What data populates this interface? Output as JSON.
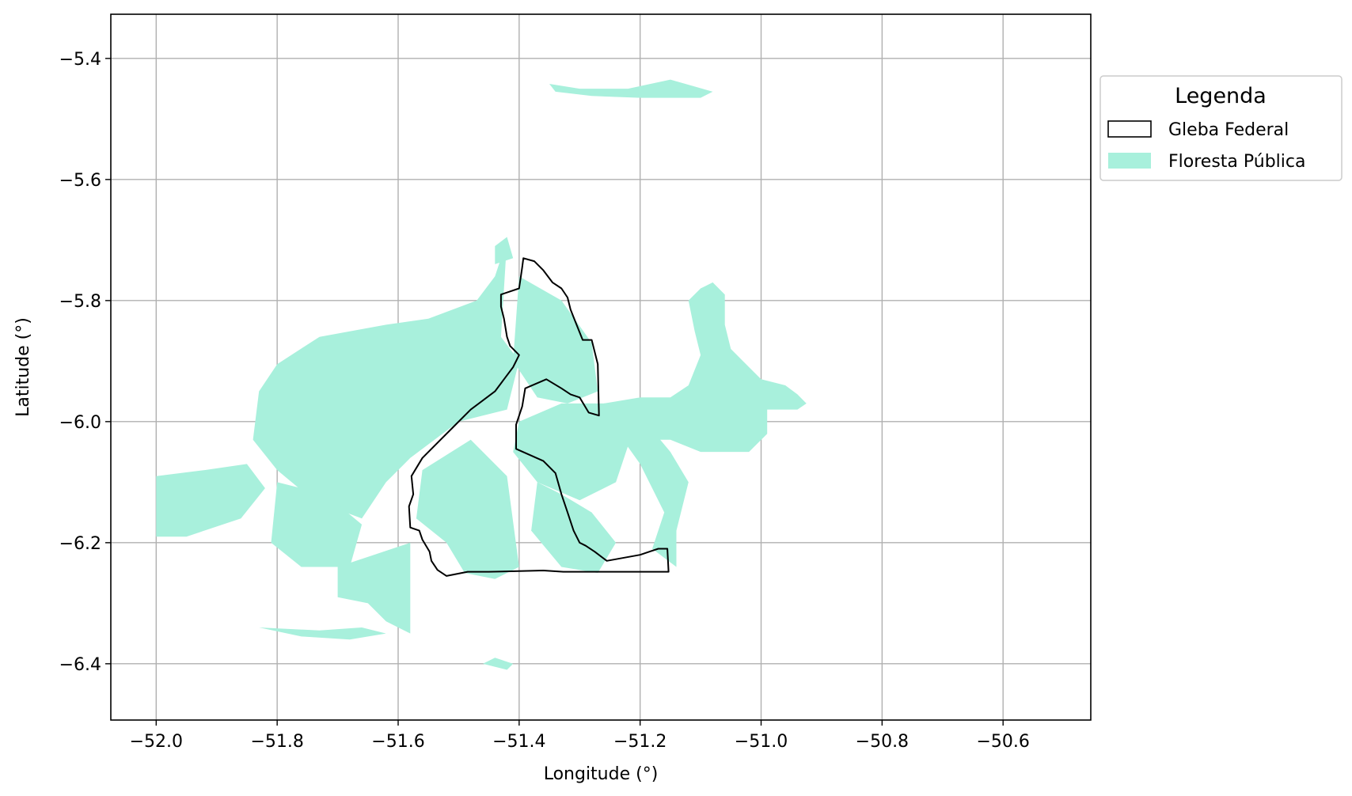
{
  "chart_data": {
    "type": "map",
    "title": "",
    "xlabel": "Longitude (°)",
    "ylabel": "Latitude (°)",
    "xlim": [
      -52.075,
      -50.455
    ],
    "ylim": [
      -6.493,
      -5.327
    ],
    "x_ticks": [
      -52.0,
      -51.8,
      -51.6,
      -51.4,
      -51.2,
      -51.0,
      -50.8,
      -50.6
    ],
    "x_tick_labels": [
      "−52.0",
      "−51.8",
      "−51.6",
      "−51.4",
      "−51.2",
      "−51.0",
      "−50.8",
      "−50.6"
    ],
    "y_ticks": [
      -5.4,
      -5.6,
      -5.8,
      -6.0,
      -6.2,
      -6.4
    ],
    "y_tick_labels": [
      "−5.4",
      "−5.6",
      "−5.8",
      "−6.0",
      "−6.2",
      "−6.4"
    ],
    "grid": true,
    "legend": {
      "title": "Legenda",
      "placement": "outside-right-top",
      "entries": [
        {
          "label": "Gleba Federal",
          "style": "outline",
          "color": "#000000"
        },
        {
          "label": "Floresta Pública",
          "style": "fill",
          "color": "#a8f0dc"
        }
      ]
    },
    "layers": {
      "floresta_publica": {
        "color": "#a8f0dc",
        "polygons": [
          [
            [
              -51.8,
              -5.905
            ],
            [
              -51.73,
              -5.86
            ],
            [
              -51.62,
              -5.84
            ],
            [
              -51.55,
              -5.83
            ],
            [
              -51.47,
              -5.8
            ],
            [
              -51.44,
              -5.76
            ],
            [
              -51.42,
              -5.7
            ],
            [
              -51.43,
              -5.86
            ],
            [
              -51.4,
              -5.9
            ],
            [
              -51.42,
              -5.98
            ],
            [
              -51.5,
              -6.0
            ],
            [
              -51.58,
              -6.06
            ],
            [
              -51.62,
              -6.1
            ],
            [
              -51.66,
              -6.16
            ],
            [
              -51.74,
              -6.13
            ],
            [
              -51.8,
              -6.08
            ],
            [
              -51.84,
              -6.03
            ],
            [
              -51.83,
              -5.95
            ]
          ],
          [
            [
              -52.0,
              -6.09
            ],
            [
              -51.92,
              -6.08
            ],
            [
              -51.85,
              -6.07
            ],
            [
              -51.82,
              -6.11
            ],
            [
              -51.86,
              -6.16
            ],
            [
              -51.95,
              -6.19
            ],
            [
              -52.0,
              -6.19
            ]
          ],
          [
            [
              -51.8,
              -6.1
            ],
            [
              -51.72,
              -6.12
            ],
            [
              -51.66,
              -6.17
            ],
            [
              -51.68,
              -6.24
            ],
            [
              -51.76,
              -6.24
            ],
            [
              -51.81,
              -6.2
            ]
          ],
          [
            [
              -51.64,
              -6.22
            ],
            [
              -51.58,
              -6.2
            ],
            [
              -51.58,
              -6.35
            ],
            [
              -51.62,
              -6.33
            ],
            [
              -51.65,
              -6.3
            ],
            [
              -51.7,
              -6.29
            ],
            [
              -51.7,
              -6.24
            ]
          ],
          [
            [
              -51.56,
              -6.08
            ],
            [
              -51.48,
              -6.03
            ],
            [
              -51.42,
              -6.09
            ],
            [
              -51.4,
              -6.24
            ],
            [
              -51.44,
              -6.26
            ],
            [
              -51.49,
              -6.25
            ],
            [
              -51.52,
              -6.2
            ],
            [
              -51.57,
              -6.16
            ]
          ],
          [
            [
              -51.4,
              -5.76
            ],
            [
              -51.33,
              -5.8
            ],
            [
              -51.28,
              -5.87
            ],
            [
              -51.27,
              -5.95
            ],
            [
              -51.32,
              -5.97
            ],
            [
              -51.37,
              -5.96
            ],
            [
              -51.41,
              -5.9
            ]
          ],
          [
            [
              -51.4,
              -6.0
            ],
            [
              -51.33,
              -5.97
            ],
            [
              -51.25,
              -5.97
            ],
            [
              -51.22,
              -6.04
            ],
            [
              -51.24,
              -6.1
            ],
            [
              -51.3,
              -6.13
            ],
            [
              -51.37,
              -6.1
            ],
            [
              -51.41,
              -6.05
            ]
          ],
          [
            [
              -51.37,
              -6.1
            ],
            [
              -51.33,
              -6.12
            ],
            [
              -51.28,
              -6.15
            ],
            [
              -51.24,
              -6.2
            ],
            [
              -51.27,
              -6.25
            ],
            [
              -51.33,
              -6.24
            ],
            [
              -51.38,
              -6.18
            ]
          ],
          [
            [
              -51.25,
              -6.0
            ],
            [
              -51.2,
              -6.07
            ],
            [
              -51.16,
              -6.15
            ],
            [
              -51.18,
              -6.21
            ],
            [
              -51.14,
              -6.24
            ],
            [
              -51.14,
              -6.18
            ],
            [
              -51.12,
              -6.1
            ],
            [
              -51.15,
              -6.05
            ],
            [
              -51.2,
              -5.99
            ]
          ],
          [
            [
              -51.26,
              -5.97
            ],
            [
              -51.2,
              -5.96
            ],
            [
              -51.15,
              -5.96
            ],
            [
              -51.12,
              -5.94
            ],
            [
              -51.1,
              -5.89
            ],
            [
              -51.11,
              -5.85
            ],
            [
              -51.12,
              -5.8
            ],
            [
              -51.1,
              -5.78
            ],
            [
              -51.08,
              -5.77
            ],
            [
              -51.06,
              -5.79
            ],
            [
              -51.06,
              -5.84
            ],
            [
              -51.05,
              -5.88
            ],
            [
              -51.02,
              -5.91
            ],
            [
              -51.0,
              -5.93
            ],
            [
              -50.96,
              -5.94
            ],
            [
              -50.94,
              -5.955
            ],
            [
              -50.925,
              -5.97
            ],
            [
              -50.94,
              -5.98
            ],
            [
              -50.99,
              -5.98
            ],
            [
              -50.99,
              -6.02
            ],
            [
              -51.02,
              -6.05
            ],
            [
              -51.1,
              -6.05
            ],
            [
              -51.15,
              -6.03
            ],
            [
              -51.22,
              -6.03
            ],
            [
              -51.27,
              -6.02
            ]
          ],
          [
            [
              -51.35,
              -5.442
            ],
            [
              -51.3,
              -5.45
            ],
            [
              -51.22,
              -5.45
            ],
            [
              -51.15,
              -5.435
            ],
            [
              -51.08,
              -5.455
            ],
            [
              -51.1,
              -5.465
            ],
            [
              -51.2,
              -5.465
            ],
            [
              -51.28,
              -5.462
            ],
            [
              -51.34,
              -5.455
            ]
          ],
          [
            [
              -51.66,
              -6.34
            ],
            [
              -51.62,
              -6.35
            ],
            [
              -51.68,
              -6.36
            ],
            [
              -51.76,
              -6.355
            ],
            [
              -51.83,
              -6.34
            ],
            [
              -51.73,
              -6.345
            ]
          ],
          [
            [
              -51.44,
              -5.71
            ],
            [
              -51.42,
              -5.695
            ],
            [
              -51.41,
              -5.73
            ],
            [
              -51.44,
              -5.74
            ]
          ],
          [
            [
              -51.44,
              -6.39
            ],
            [
              -51.46,
              -6.4
            ],
            [
              -51.42,
              -6.41
            ],
            [
              -51.41,
              -6.4
            ]
          ]
        ]
      },
      "gleba_federal": {
        "color": "#000000",
        "polygons": [
          [
            [
              -51.393,
              -5.73
            ],
            [
              -51.375,
              -5.735
            ],
            [
              -51.36,
              -5.75
            ],
            [
              -51.345,
              -5.77
            ],
            [
              -51.33,
              -5.78
            ],
            [
              -51.32,
              -5.795
            ],
            [
              -51.315,
              -5.815
            ],
            [
              -51.305,
              -5.84
            ],
            [
              -51.295,
              -5.865
            ],
            [
              -51.28,
              -5.865
            ],
            [
              -51.27,
              -5.905
            ],
            [
              -51.268,
              -5.99
            ],
            [
              -51.285,
              -5.985
            ],
            [
              -51.3,
              -5.96
            ],
            [
              -51.315,
              -5.955
            ],
            [
              -51.33,
              -5.945
            ],
            [
              -51.355,
              -5.93
            ],
            [
              -51.39,
              -5.945
            ],
            [
              -51.395,
              -5.975
            ],
            [
              -51.405,
              -6.005
            ],
            [
              -51.405,
              -6.045
            ],
            [
              -51.36,
              -6.065
            ],
            [
              -51.34,
              -6.085
            ],
            [
              -51.33,
              -6.12
            ],
            [
              -51.32,
              -6.15
            ],
            [
              -51.31,
              -6.18
            ],
            [
              -51.3,
              -6.2
            ],
            [
              -51.29,
              -6.205
            ],
            [
              -51.275,
              -6.215
            ],
            [
              -51.255,
              -6.23
            ],
            [
              -51.2,
              -6.22
            ],
            [
              -51.185,
              -6.215
            ],
            [
              -51.17,
              -6.21
            ],
            [
              -51.155,
              -6.21
            ],
            [
              -51.153,
              -6.248
            ],
            [
              -51.2,
              -6.248
            ],
            [
              -51.25,
              -6.248
            ],
            [
              -51.3,
              -6.248
            ],
            [
              -51.327,
              -6.248
            ],
            [
              -51.36,
              -6.246
            ],
            [
              -51.4,
              -6.247
            ],
            [
              -51.45,
              -6.248
            ],
            [
              -51.485,
              -6.248
            ],
            [
              -51.52,
              -6.255
            ],
            [
              -51.535,
              -6.245
            ],
            [
              -51.545,
              -6.23
            ],
            [
              -51.548,
              -6.215
            ],
            [
              -51.56,
              -6.195
            ],
            [
              -51.565,
              -6.18
            ],
            [
              -51.58,
              -6.175
            ],
            [
              -51.582,
              -6.14
            ],
            [
              -51.575,
              -6.12
            ],
            [
              -51.578,
              -6.09
            ],
            [
              -51.56,
              -6.06
            ],
            [
              -51.53,
              -6.03
            ],
            [
              -51.51,
              -6.01
            ],
            [
              -51.48,
              -5.98
            ],
            [
              -51.44,
              -5.95
            ],
            [
              -51.41,
              -5.91
            ],
            [
              -51.4,
              -5.89
            ],
            [
              -51.415,
              -5.875
            ],
            [
              -51.42,
              -5.86
            ],
            [
              -51.425,
              -5.83
            ],
            [
              -51.43,
              -5.81
            ],
            [
              -51.43,
              -5.79
            ],
            [
              -51.4,
              -5.78
            ],
            [
              -51.395,
              -5.745
            ]
          ]
        ]
      }
    }
  }
}
